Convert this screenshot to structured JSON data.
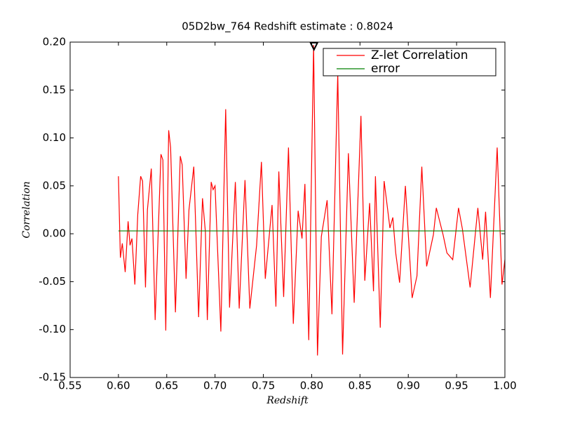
{
  "chart_data": {
    "type": "line",
    "title": "05D2bw_764 Redshift estimate : 0.8024",
    "xlabel": "Redshift",
    "ylabel": "Correlation",
    "xlim": [
      0.55,
      1.0
    ],
    "ylim": [
      -0.15,
      0.2
    ],
    "xticks": [
      0.55,
      {
        "value": 0.6,
        "label": "0.60"
      },
      0.65,
      {
        "value": 0.7,
        "label": "0.70"
      },
      0.75,
      {
        "value": 0.8,
        "label": "0.80"
      },
      0.85,
      {
        "value": 0.9,
        "label": "0.90"
      },
      0.95,
      {
        "value": 1.0,
        "label": "1.00"
      }
    ],
    "yticks": [
      -0.15,
      {
        "value": -0.1,
        "label": "-0.10"
      },
      -0.05,
      {
        "value": 0,
        "label": "0.00"
      },
      0.05,
      {
        "value": 0.1,
        "label": "0.10"
      },
      0.15,
      {
        "value": 0.2,
        "label": "0.20"
      }
    ],
    "legend": "upper right",
    "series": [
      {
        "name": "Z-let Correlation",
        "color": "#ff0000",
        "x": [
          0.6,
          0.602,
          0.604,
          0.607,
          0.61,
          0.612,
          0.614,
          0.617,
          0.62,
          0.623,
          0.625,
          0.628,
          0.63,
          0.634,
          0.638,
          0.644,
          0.646,
          0.649,
          0.652,
          0.654,
          0.659,
          0.664,
          0.666,
          0.67,
          0.673,
          0.678,
          0.683,
          0.687,
          0.69,
          0.692,
          0.696,
          0.698,
          0.7,
          0.706,
          0.711,
          0.715,
          0.721,
          0.725,
          0.731,
          0.736,
          0.743,
          0.748,
          0.752,
          0.759,
          0.763,
          0.766,
          0.771,
          0.776,
          0.781,
          0.786,
          0.79,
          0.793,
          0.797,
          0.802,
          0.806,
          0.81,
          0.816,
          0.821,
          0.827,
          0.832,
          0.838,
          0.844,
          0.851,
          0.855,
          0.86,
          0.864,
          0.866,
          0.871,
          0.875,
          0.881,
          0.884,
          0.887,
          0.891,
          0.897,
          0.904,
          0.909,
          0.914,
          0.919,
          0.926,
          0.929,
          0.936,
          0.94,
          0.946,
          0.952,
          0.956,
          0.964,
          0.972,
          0.977,
          0.98,
          0.985,
          0.992,
          0.997,
          1.0
        ],
        "values": [
          0.06,
          -0.025,
          -0.01,
          -0.04,
          0.013,
          -0.012,
          -0.005,
          -0.053,
          0.02,
          0.06,
          0.055,
          -0.056,
          0.025,
          0.068,
          -0.09,
          0.083,
          0.077,
          -0.101,
          0.108,
          0.09,
          -0.082,
          0.081,
          0.072,
          -0.047,
          0.025,
          0.07,
          -0.087,
          0.037,
          0.002,
          -0.09,
          0.054,
          0.046,
          0.05,
          -0.102,
          0.13,
          -0.077,
          0.054,
          -0.078,
          0.056,
          -0.078,
          -0.012,
          0.075,
          -0.047,
          0.03,
          -0.076,
          0.065,
          -0.066,
          0.09,
          -0.094,
          0.024,
          -0.005,
          0.052,
          -0.111,
          0.197,
          -0.127,
          -0.003,
          0.035,
          -0.084,
          0.167,
          -0.126,
          0.084,
          -0.072,
          0.123,
          -0.049,
          0.032,
          -0.06,
          0.06,
          -0.098,
          0.055,
          0.006,
          0.017,
          -0.02,
          -0.051,
          0.05,
          -0.067,
          -0.044,
          0.07,
          -0.034,
          -0.001,
          0.027,
          -0.001,
          -0.02,
          -0.027,
          0.027,
          0.005,
          -0.056,
          0.027,
          -0.027,
          0.023,
          -0.067,
          0.09,
          -0.053,
          -0.027
        ]
      },
      {
        "name": "error",
        "color": "#008000",
        "x": [
          0.6,
          1.0
        ],
        "values": [
          0.003,
          0.003
        ]
      }
    ],
    "peak": {
      "x": 0.8024,
      "y": 0.195
    }
  }
}
